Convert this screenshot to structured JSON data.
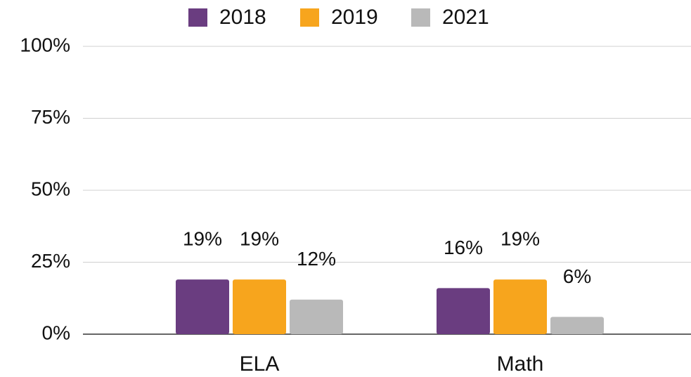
{
  "chart_data": {
    "type": "bar",
    "categories": [
      "ELA",
      "Math"
    ],
    "series": [
      {
        "name": "2018",
        "color": "#6a3d80",
        "values": [
          19,
          16
        ],
        "value_labels": [
          "19%",
          "16%"
        ]
      },
      {
        "name": "2019",
        "color": "#f7a51d",
        "values": [
          19,
          19
        ],
        "value_labels": [
          "19%",
          "19%"
        ]
      },
      {
        "name": "2021",
        "color": "#b9b9b9",
        "values": [
          12,
          6
        ],
        "value_labels": [
          "12%",
          "6%"
        ]
      }
    ],
    "ylim": [
      0,
      100
    ],
    "yticks": [
      {
        "value": 0,
        "label": "0%"
      },
      {
        "value": 25,
        "label": "25%"
      },
      {
        "value": 50,
        "label": "50%"
      },
      {
        "value": 75,
        "label": "75%"
      },
      {
        "value": 100,
        "label": "100%"
      }
    ],
    "grid": true,
    "legend": "top"
  }
}
